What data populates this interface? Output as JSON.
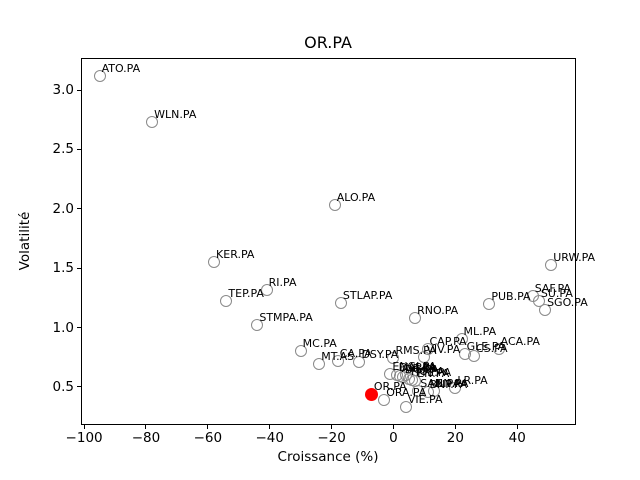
{
  "chart_data": {
    "type": "scatter",
    "title": "OR.PA",
    "xlabel": "Croissance (%)",
    "ylabel": "Volatilité",
    "xlim": [
      -101,
      59
    ],
    "ylim": [
      0.18,
      3.27
    ],
    "grid": false,
    "legend": "none",
    "xticks": [
      {
        "v": -100,
        "label": "−100"
      },
      {
        "v": -80,
        "label": "−80"
      },
      {
        "v": -60,
        "label": "−60"
      },
      {
        "v": -40,
        "label": "−40"
      },
      {
        "v": -20,
        "label": "−20"
      },
      {
        "v": 0,
        "label": "0"
      },
      {
        "v": 20,
        "label": "20"
      },
      {
        "v": 40,
        "label": "40"
      }
    ],
    "yticks": [
      {
        "v": 0.5,
        "label": "0.5"
      },
      {
        "v": 1.0,
        "label": "1.0"
      },
      {
        "v": 1.5,
        "label": "1.5"
      },
      {
        "v": 2.0,
        "label": "2.0"
      },
      {
        "v": 2.5,
        "label": "2.5"
      },
      {
        "v": 3.0,
        "label": "3.0"
      }
    ],
    "colors": {
      "marker_edge": "#8a8a8a",
      "highlight": "#ff0000",
      "text": "#000000",
      "axis": "#000000"
    },
    "highlight_point": {
      "label": "OR.PA",
      "x": -7,
      "y": 0.44
    },
    "points": [
      {
        "label": "ATO.PA",
        "x": -95,
        "y": 3.12
      },
      {
        "label": "WLN.PA",
        "x": -78,
        "y": 2.73
      },
      {
        "label": "ALO.PA",
        "x": -19,
        "y": 2.03
      },
      {
        "label": "KER.PA",
        "x": -58,
        "y": 1.55
      },
      {
        "label": "URW.PA",
        "x": 51,
        "y": 1.53
      },
      {
        "label": "RI.PA",
        "x": -41,
        "y": 1.32
      },
      {
        "label": "SAF.PA",
        "x": 45,
        "y": 1.27
      },
      {
        "label": "TEP.PA",
        "x": -54,
        "y": 1.22
      },
      {
        "label": "SU.PA",
        "x": 47,
        "y": 1.22
      },
      {
        "label": "STLAP.PA",
        "x": -17,
        "y": 1.21
      },
      {
        "label": "PUB.PA",
        "x": 31,
        "y": 1.2
      },
      {
        "label": "SGO.PA",
        "x": 49,
        "y": 1.15
      },
      {
        "label": "RNO.PA",
        "x": 7,
        "y": 1.08
      },
      {
        "label": "STMPA.PA",
        "x": -44,
        "y": 1.02
      },
      {
        "label": "ML.PA",
        "x": 22,
        "y": 0.9
      },
      {
        "label": "CAP.PA",
        "x": 11,
        "y": 0.82
      },
      {
        "label": "ACA.PA",
        "x": 34,
        "y": 0.82
      },
      {
        "label": "MC.PA",
        "x": -30,
        "y": 0.8
      },
      {
        "label": "GLE.PA",
        "x": 23,
        "y": 0.78
      },
      {
        "label": "CS.PA",
        "x": 26,
        "y": 0.76
      },
      {
        "label": "VIV.PA",
        "x": 10,
        "y": 0.75
      },
      {
        "label": "RMS.PA",
        "x": 0,
        "y": 0.74
      },
      {
        "label": "CA.PA",
        "x": -18,
        "y": 0.72
      },
      {
        "label": "DSY.PA",
        "x": -11,
        "y": 0.71
      },
      {
        "label": "MT.AS",
        "x": -24,
        "y": 0.69
      },
      {
        "label": "ENGI.PA",
        "x": -1,
        "y": 0.61
      },
      {
        "label": "EL.PA",
        "x": 1,
        "y": 0.6
      },
      {
        "label": "AI.PA",
        "x": 4,
        "y": 0.6
      },
      {
        "label": "AIR.PA",
        "x": 2,
        "y": 0.59
      },
      {
        "label": "DG.PA",
        "x": 3,
        "y": 0.58
      },
      {
        "label": "HO.PA",
        "x": 5,
        "y": 0.57
      },
      {
        "label": "TTE.PA",
        "x": 6,
        "y": 0.56
      },
      {
        "label": "EN.PA",
        "x": 7,
        "y": 0.55
      },
      {
        "label": "LR.PA",
        "x": 20,
        "y": 0.49
      },
      {
        "label": "SAN.PA",
        "x": 8,
        "y": 0.47
      },
      {
        "label": "BN.PA",
        "x": 13,
        "y": 0.47
      },
      {
        "label": "BNP.PA",
        "x": 11,
        "y": 0.46
      },
      {
        "label": "ORA.PA",
        "x": -3,
        "y": 0.39
      },
      {
        "label": "VIE.PA",
        "x": 4,
        "y": 0.33
      }
    ]
  }
}
